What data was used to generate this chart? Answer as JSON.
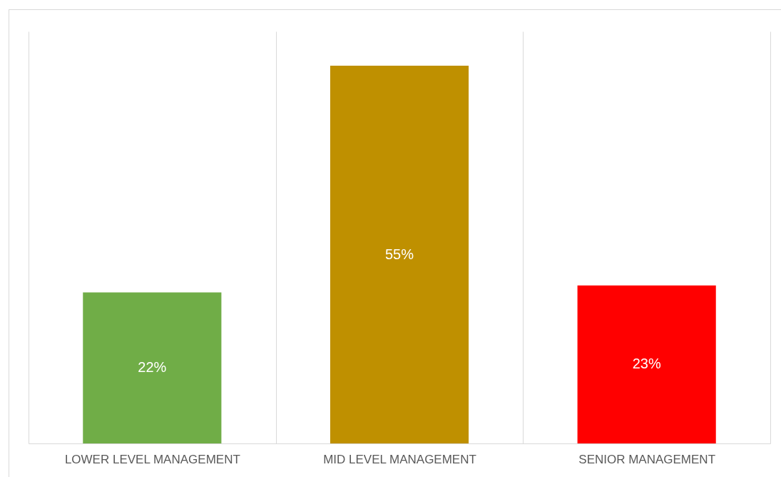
{
  "chart_data": {
    "type": "bar",
    "categories": [
      "LOWER LEVEL MANAGEMENT",
      "MID LEVEL MANAGEMENT",
      "SENIOR MANAGEMENT"
    ],
    "values": [
      22,
      55,
      23
    ],
    "colors": [
      "#70ad47",
      "#bf9000",
      "#ff0000"
    ],
    "value_labels": [
      "22%",
      "55%",
      "23%"
    ],
    "ylim": [
      0,
      60
    ],
    "grid": "x"
  }
}
